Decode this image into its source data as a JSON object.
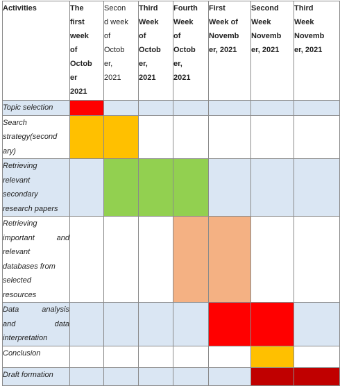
{
  "header": {
    "activities": "Activities",
    "weeks": [
      {
        "text": "The\nfirst\nweek\nof\nOctob\ner\n2021",
        "bold": true
      },
      {
        "text": "Secon\nd week\nof\nOctob\ner,\n2021",
        "bold": false
      },
      {
        "text": "Third\nWeek\nof\nOctob\ner,\n2021",
        "bold": true
      },
      {
        "text": "Fourth\nWeek\nof\nOctob\ner,\n2021",
        "bold": true
      },
      {
        "text": "First\nWeek of\nNovemb\ner, 2021",
        "bold": true
      },
      {
        "text": "Second\nWeek\nNovemb\ner, 2021",
        "bold": true
      },
      {
        "text": "Third\nWeek\nNovemb\ner, 2021",
        "bold": true
      }
    ]
  },
  "activities": [
    {
      "label": "Topic selection",
      "cells": [
        "#ff0000",
        "",
        "",
        "",
        "",
        "",
        ""
      ]
    },
    {
      "label": "Search\nstrategy(second\nary)",
      "cells": [
        "#ffc000",
        "#ffc000",
        "",
        "",
        "",
        "",
        ""
      ]
    },
    {
      "label": "Retrieving\nrelevant\nsecondary\nresearch papers",
      "cells": [
        "",
        "#92d050",
        "#92d050",
        "#92d050",
        "",
        "",
        ""
      ]
    },
    {
      "label": "Retrieving\nimportant  and\nrelevant\ndatabases from\nselected\nresources",
      "cells": [
        "",
        "",
        "",
        "#f4b183",
        "#f4b183",
        "",
        ""
      ]
    },
    {
      "label": "Data  analysis\nand  data\ninterpretation",
      "cells": [
        "",
        "",
        "",
        "",
        "#ff0000",
        "#ff0000",
        ""
      ]
    },
    {
      "label": "Conclusion",
      "cells": [
        "",
        "",
        "",
        "",
        "",
        "#ffc000",
        ""
      ]
    },
    {
      "label": "Draft formation",
      "cells": [
        "",
        "",
        "",
        "",
        "",
        "#c00000",
        "#c00000"
      ]
    }
  ]
}
